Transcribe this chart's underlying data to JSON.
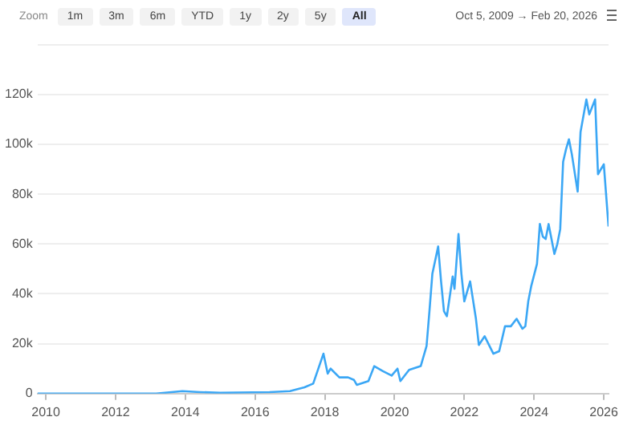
{
  "chart_data": {
    "type": "line",
    "annotations": [
      "Zoom",
      "1m",
      "3m",
      "6m",
      "YTD",
      "1y",
      "2y",
      "5y",
      "All",
      "Oct 5, 2009 → Feb 20, 2026"
    ],
    "x": [
      "2009-10-05",
      "2010-07",
      "2011-06",
      "2013-03",
      "2013-12",
      "2014-06",
      "2015-01",
      "2016-06",
      "2017-01",
      "2017-06",
      "2017-09",
      "2017-12-17",
      "2018-02",
      "2018-03",
      "2018-06",
      "2018-09",
      "2018-11",
      "2018-12",
      "2019-04",
      "2019-06",
      "2019-09",
      "2019-12",
      "2020-02",
      "2020-03",
      "2020-06",
      "2020-10",
      "2020-12",
      "2021-01",
      "2021-02",
      "2021-04",
      "2021-05",
      "2021-06",
      "2021-07",
      "2021-09",
      "2021-09-20",
      "2021-11",
      "2021-12",
      "2022-01",
      "2022-03",
      "2022-05",
      "2022-06",
      "2022-08",
      "2022-11",
      "2023-01",
      "2023-03",
      "2023-05",
      "2023-07",
      "2023-09",
      "2023-10",
      "2023-11",
      "2023-12",
      "2024-02",
      "2024-03",
      "2024-04",
      "2024-05",
      "2024-06",
      "2024-08",
      "2024-09",
      "2024-10",
      "2024-11",
      "2024-12",
      "2025-01",
      "2025-02",
      "2025-04",
      "2025-05",
      "2025-07",
      "2025-08",
      "2025-10",
      "2025-11",
      "2025-12",
      "2026-01",
      "2026-02-20"
    ],
    "series": [
      {
        "color": "#3ba7f5",
        "values": [
          0,
          0,
          0,
          0,
          1000,
          600,
          300,
          600,
          1000,
          2500,
          4000,
          16000,
          8000,
          10000,
          6500,
          6500,
          5500,
          3500,
          5000,
          11000,
          9000,
          7200,
          10000,
          5000,
          9500,
          11000,
          19000,
          33000,
          48000,
          59000,
          45000,
          33000,
          31000,
          47000,
          42000,
          64000,
          48000,
          37000,
          45000,
          30000,
          19500,
          23000,
          16000,
          17000,
          27000,
          27000,
          30000,
          26000,
          27000,
          37000,
          43000,
          52000,
          68000,
          63000,
          62000,
          68000,
          56000,
          60000,
          66000,
          93000,
          98000,
          102000,
          96000,
          81000,
          105000,
          118000,
          112000,
          118000,
          88000,
          90000,
          92000,
          67000
        ]
      }
    ],
    "xlim": [
      "2009-10-05",
      "2026-02-20"
    ],
    "xticks": [
      "2010",
      "2012",
      "2014",
      "2016",
      "2018",
      "2020",
      "2022",
      "2024",
      "2026"
    ],
    "ylim": [
      0,
      140000
    ],
    "yticks": [
      0,
      {
        "value": 20000,
        "label": "20k"
      },
      {
        "value": 40000,
        "label": "40k"
      },
      {
        "value": 60000,
        "label": "60k"
      },
      {
        "value": 80000,
        "label": "80k"
      },
      {
        "value": 100000,
        "label": "100k"
      },
      {
        "value": 120000,
        "label": "120k"
      },
      {
        "value": 140000,
        "label": null
      }
    ],
    "grid": "y",
    "legend": false,
    "marker": "none",
    "line_style": "solid"
  }
}
